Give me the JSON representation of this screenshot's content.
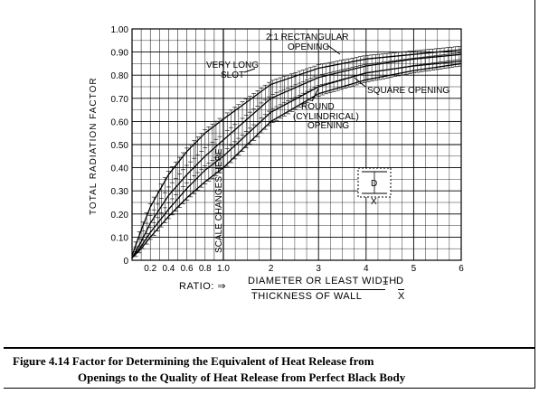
{
  "chart_data": {
    "type": "line",
    "ylabel": "TOTAL RADIATION FACTOR",
    "y_ticks": [
      "0",
      "0.10",
      "0.20",
      "0.30",
      "0.40",
      "0.50",
      "0.60",
      "0.70",
      "0.80",
      "0.90",
      "1.00"
    ],
    "ylim": [
      0,
      1.0
    ],
    "x_ticks_fine": [
      "0.2",
      "0.4",
      "0.6",
      "0.8",
      "1.0"
    ],
    "x_ticks_coarse": [
      "2",
      "3",
      "4",
      "5",
      "6"
    ],
    "x_scale_note": "Scale changes at ratio 1.0: 0–1.0 is expanded, 1.0–6 is compressed",
    "grid": true,
    "series": [
      {
        "name": "VERY LONG SLOT",
        "x": [
          0,
          0.1,
          0.2,
          0.4,
          0.6,
          0.8,
          1.0,
          2,
          3,
          4,
          5,
          6
        ],
        "values": [
          0.02,
          0.13,
          0.23,
          0.37,
          0.47,
          0.55,
          0.61,
          0.76,
          0.83,
          0.87,
          0.89,
          0.91
        ]
      },
      {
        "name": "2:1 RECTANGULAR OPENING",
        "x": [
          0,
          0.1,
          0.2,
          0.4,
          0.6,
          0.8,
          1.0,
          2,
          3,
          4,
          5,
          6
        ],
        "values": [
          0.01,
          0.08,
          0.16,
          0.28,
          0.37,
          0.45,
          0.52,
          0.7,
          0.79,
          0.84,
          0.87,
          0.89
        ]
      },
      {
        "name": "SQUARE OPENING",
        "x": [
          0,
          0.1,
          0.2,
          0.4,
          0.6,
          0.8,
          1.0,
          2,
          3,
          4,
          5,
          6
        ],
        "values": [
          0.01,
          0.06,
          0.12,
          0.22,
          0.31,
          0.39,
          0.45,
          0.64,
          0.75,
          0.81,
          0.84,
          0.86
        ]
      },
      {
        "name": "ROUND (CYLINDRICAL) OPENING",
        "x": [
          0,
          0.1,
          0.2,
          0.4,
          0.6,
          0.8,
          1.0,
          2,
          3,
          4,
          5,
          6
        ],
        "values": [
          0.01,
          0.05,
          0.1,
          0.19,
          0.27,
          0.34,
          0.4,
          0.6,
          0.72,
          0.78,
          0.82,
          0.85
        ]
      }
    ],
    "annotations": {
      "scale_change": "SCALE CHANGES HERE",
      "rect_line1": "2:1 RECTANGULAR",
      "rect_line2": "OPENING",
      "slot_line1": "VERY LONG",
      "slot_line2": "SLOT",
      "square": "SQUARE OPENING",
      "round_line1": "ROUND",
      "round_line2": "(CYLINDRICAL)",
      "round_line3": "OPENING",
      "inset_d": "D",
      "inset_x": "X"
    },
    "xlabel": {
      "ratio": "RATIO: ⇒",
      "numerator": "DIAMETER OR LEAST WIDTH",
      "denominator": "THICKNESS OF WALL",
      "equals": "=",
      "d": "D",
      "x": "X"
    }
  },
  "caption": {
    "line1": "Figure 4.14 Factor for Determining the Equivalent of Heat Release from",
    "line2": "Openings to the Quality of Heat Release from Perfect Black Body"
  }
}
